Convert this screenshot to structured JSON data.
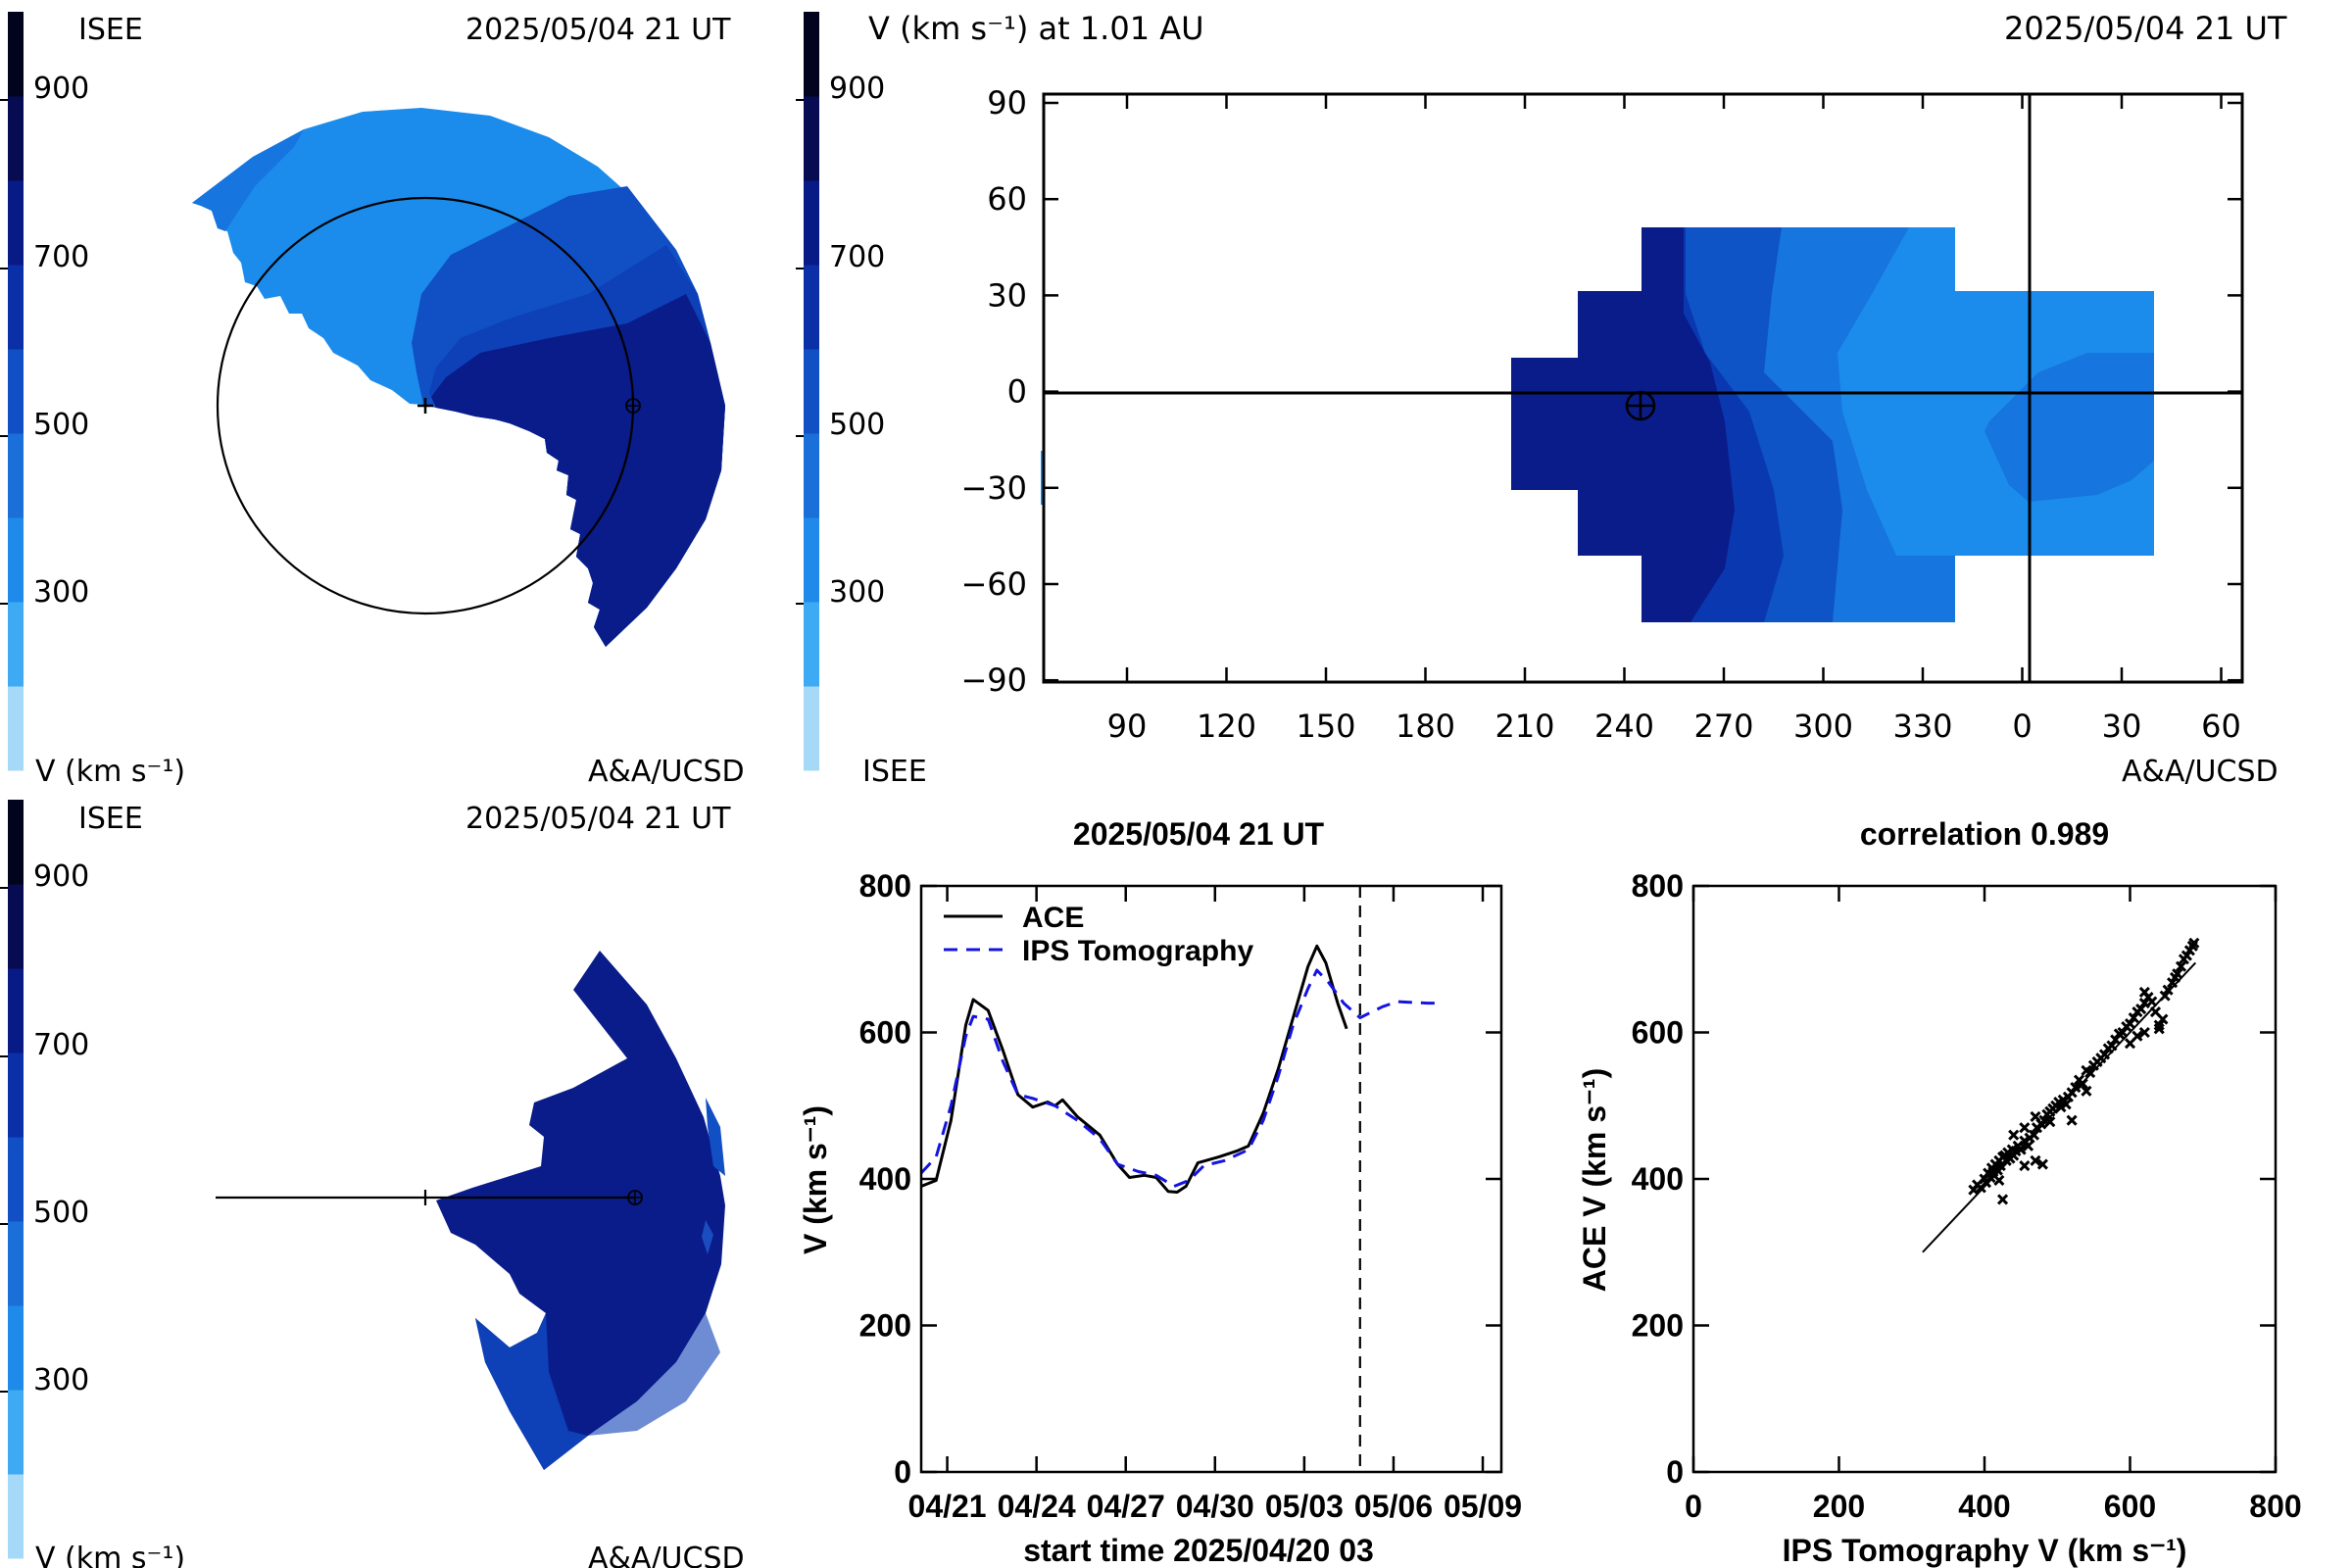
{
  "colors": {
    "scale": [
      "#a6d8f7",
      "#3eaaf3",
      "#1f8aea",
      "#1b6fd8",
      "#1050c4",
      "#0b2fa6",
      "#081a86",
      "#060b52",
      "#02041e"
    ],
    "region": [
      "#1b8cec",
      "#1675de",
      "#0e54c6",
      "#0a38b0",
      "#0a1c89"
    ],
    "ace": "#000000",
    "ips": "#1414e0"
  },
  "panel_tl": {
    "label": "ISEE",
    "timestamp": "2025/05/04 21 UT",
    "colorbar_ticks": [
      "900",
      "700",
      "500",
      "300"
    ],
    "units": "V (km s⁻¹)",
    "credit": "A&A/UCSD"
  },
  "panel_tr": {
    "title": "V (km s⁻¹) at 1.01 AU",
    "timestamp": "2025/05/04 21 UT",
    "colorbar_ticks": [
      "900",
      "700",
      "500",
      "300"
    ],
    "label": "ISEE",
    "credit": "A&A/UCSD",
    "lat_ticks": [
      "90",
      "60",
      "30",
      "0",
      "−30",
      "−60",
      "−90"
    ],
    "lon_ticks": [
      "90",
      "120",
      "150",
      "180",
      "210",
      "240",
      "270",
      "300",
      "330",
      "0",
      "30",
      "60"
    ]
  },
  "panel_bl": {
    "label": "ISEE",
    "timestamp": "2025/05/04 21 UT",
    "colorbar_ticks": [
      "900",
      "700",
      "500",
      "300"
    ],
    "units": "V (km s⁻¹)",
    "credit": "A&A/UCSD"
  },
  "chart_data": [
    {
      "type": "line",
      "title": "2025/05/04 21 UT",
      "xlabel": "start time 2025/04/20 03",
      "ylabel": "V (km s⁻¹)",
      "xlim": [
        0,
        19.5
      ],
      "ylim": [
        0,
        800
      ],
      "yticks": [
        0,
        200,
        400,
        600,
        800
      ],
      "x_tick_labels": [
        "04/21",
        "04/24",
        "04/27",
        "04/30",
        "05/03",
        "05/06",
        "05/09"
      ],
      "x_tick_positions": [
        0.875,
        3.875,
        6.875,
        9.875,
        12.875,
        15.875,
        18.875
      ],
      "current_time": 14.75,
      "legend": "top-left",
      "series": [
        {
          "name": "ACE",
          "style": "solid",
          "points": [
            [
              0,
              390
            ],
            [
              0.5,
              398
            ],
            [
              1,
              480
            ],
            [
              1.5,
              610
            ],
            [
              1.75,
              645
            ],
            [
              2.25,
              630
            ],
            [
              2.75,
              575
            ],
            [
              3.25,
              515
            ],
            [
              3.75,
              498
            ],
            [
              4.25,
              505
            ],
            [
              4.5,
              500
            ],
            [
              4.75,
              508
            ],
            [
              5.25,
              485
            ],
            [
              6,
              460
            ],
            [
              6.6,
              420
            ],
            [
              7,
              402
            ],
            [
              7.5,
              405
            ],
            [
              7.9,
              402
            ],
            [
              8.3,
              383
            ],
            [
              8.6,
              382
            ],
            [
              8.9,
              390
            ],
            [
              9.3,
              422
            ],
            [
              10,
              430
            ],
            [
              10.6,
              438
            ],
            [
              11,
              445
            ],
            [
              11.5,
              490
            ],
            [
              12,
              550
            ],
            [
              12.5,
              620
            ],
            [
              13,
              690
            ],
            [
              13.3,
              718
            ],
            [
              13.6,
              695
            ],
            [
              14,
              640
            ],
            [
              14.3,
              605
            ]
          ]
        },
        {
          "name": "IPS Tomography",
          "style": "dashed",
          "points": [
            [
              0,
              408
            ],
            [
              0.5,
              430
            ],
            [
              1,
              500
            ],
            [
              1.5,
              595
            ],
            [
              1.75,
              622
            ],
            [
              2.25,
              618
            ],
            [
              2.75,
              560
            ],
            [
              3.25,
              515
            ],
            [
              3.75,
              510
            ],
            [
              4.5,
              500
            ],
            [
              5.25,
              480
            ],
            [
              6,
              455
            ],
            [
              6.6,
              420
            ],
            [
              7.3,
              410
            ],
            [
              7.9,
              405
            ],
            [
              8.5,
              390
            ],
            [
              9,
              398
            ],
            [
              9.5,
              418
            ],
            [
              10.2,
              425
            ],
            [
              11,
              440
            ],
            [
              11.5,
              480
            ],
            [
              12,
              540
            ],
            [
              12.5,
              610
            ],
            [
              13,
              660
            ],
            [
              13.3,
              685
            ],
            [
              13.7,
              668
            ],
            [
              14.2,
              640
            ],
            [
              14.75,
              620
            ],
            [
              15.5,
              635
            ],
            [
              16,
              642
            ],
            [
              17,
              640
            ],
            [
              17.5,
              640
            ]
          ]
        }
      ]
    },
    {
      "type": "scatter",
      "title": "correlation 0.989",
      "xlabel": "IPS Tomography V (km s⁻¹)",
      "ylabel": "ACE V (km s⁻¹)",
      "xlim": [
        0,
        800
      ],
      "ylim": [
        0,
        800
      ],
      "xticks": [
        0,
        200,
        400,
        600,
        800
      ],
      "yticks": [
        0,
        200,
        400,
        600,
        800
      ],
      "fit_line": [
        [
          315,
          300
        ],
        [
          690,
          695
        ]
      ],
      "series": [
        {
          "name": "",
          "points": [
            [
              385,
              385
            ],
            [
              390,
              392
            ],
            [
              395,
              388
            ],
            [
              400,
              400
            ],
            [
              402,
              395
            ],
            [
              405,
              408
            ],
            [
              408,
              402
            ],
            [
              410,
              415
            ],
            [
              412,
              410
            ],
            [
              415,
              420
            ],
            [
              418,
              412
            ],
            [
              420,
              425
            ],
            [
              422,
              418
            ],
            [
              425,
              430
            ],
            [
              428,
              432
            ],
            [
              430,
              425
            ],
            [
              432,
              436
            ],
            [
              435,
              428
            ],
            [
              438,
              440
            ],
            [
              440,
              432
            ],
            [
              443,
              438
            ],
            [
              446,
              445
            ],
            [
              450,
              440
            ],
            [
              455,
              452
            ],
            [
              460,
              445
            ],
            [
              462,
              456
            ],
            [
              468,
              460
            ],
            [
              472,
              470
            ],
            [
              478,
              475
            ],
            [
              482,
              480
            ],
            [
              486,
              488
            ],
            [
              490,
              492
            ],
            [
              494,
              496
            ],
            [
              498,
              500
            ],
            [
              502,
              505
            ],
            [
              505,
              498
            ],
            [
              508,
              508
            ],
            [
              512,
              502
            ],
            [
              515,
              512
            ],
            [
              520,
              518
            ],
            [
              525,
              525
            ],
            [
              530,
              535
            ],
            [
              535,
              530
            ],
            [
              540,
              548
            ],
            [
              545,
              545
            ],
            [
              550,
              555
            ],
            [
              555,
              560
            ],
            [
              560,
              565
            ],
            [
              565,
              570
            ],
            [
              570,
              578
            ],
            [
              575,
              582
            ],
            [
              580,
              590
            ],
            [
              585,
              598
            ],
            [
              590,
              600
            ],
            [
              595,
              608
            ],
            [
              600,
              612
            ],
            [
              605,
              620
            ],
            [
              610,
              628
            ],
            [
              615,
              632
            ],
            [
              620,
              640
            ],
            [
              625,
              648
            ],
            [
              630,
              642
            ],
            [
              635,
              628
            ],
            [
              640,
              610
            ],
            [
              645,
              618
            ],
            [
              648,
              650
            ],
            [
              652,
              658
            ],
            [
              658,
              668
            ],
            [
              662,
              675
            ],
            [
              665,
              680
            ],
            [
              670,
              690
            ],
            [
              674,
              700
            ],
            [
              678,
              705
            ],
            [
              682,
              712
            ],
            [
              686,
              718
            ],
            [
              688,
              722
            ],
            [
              425,
              372
            ],
            [
              420,
              398
            ],
            [
              455,
              418
            ],
            [
              470,
              425
            ],
            [
              480,
              420
            ],
            [
              440,
              460
            ],
            [
              455,
              470
            ],
            [
              470,
              485
            ],
            [
              490,
              478
            ],
            [
              520,
              480
            ],
            [
              540,
              520
            ],
            [
              600,
              585
            ],
            [
              610,
              595
            ],
            [
              620,
              600
            ],
            [
              640,
              605
            ],
            [
              620,
              655
            ]
          ]
        }
      ]
    }
  ]
}
